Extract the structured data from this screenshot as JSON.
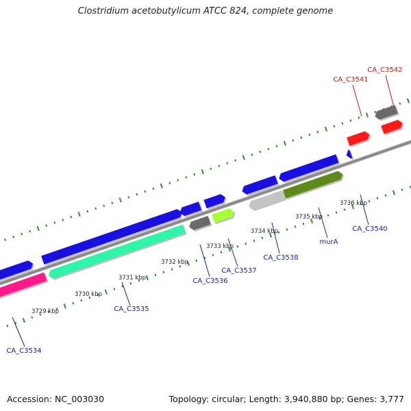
{
  "title": "Clostridium acetobutylicum ATCC 824, complete genome",
  "footer": {
    "accession": "Accession: NC_003030",
    "summary": "Topology: circular; Length: 3,940,880 bp; Genes: 3,777"
  },
  "colors": {
    "backbone": "#8a8a8a",
    "tick": "#2e8b2e",
    "label_blue": "#1a1aa8",
    "label_red": "#d41111"
  },
  "scale_labels": [
    "3729 kbp",
    "3730 kbp",
    "3731 kbp",
    "3732 kbp",
    "3733 kbp",
    "3734 kbp",
    "3735 kbp",
    "3736 kbp"
  ],
  "gene_labels": [
    {
      "text": "CA_C3534",
      "color": "blue"
    },
    {
      "text": "CA_C3535",
      "color": "blue"
    },
    {
      "text": "CA_C3536",
      "color": "blue"
    },
    {
      "text": "CA_C3537",
      "color": "blue"
    },
    {
      "text": "CA_C3538",
      "color": "blue"
    },
    {
      "text": "murA",
      "color": "blue"
    },
    {
      "text": "CA_C3540",
      "color": "blue"
    },
    {
      "text": "CA_C3541",
      "color": "red"
    },
    {
      "text": "CA_C3542",
      "color": "red"
    }
  ]
}
